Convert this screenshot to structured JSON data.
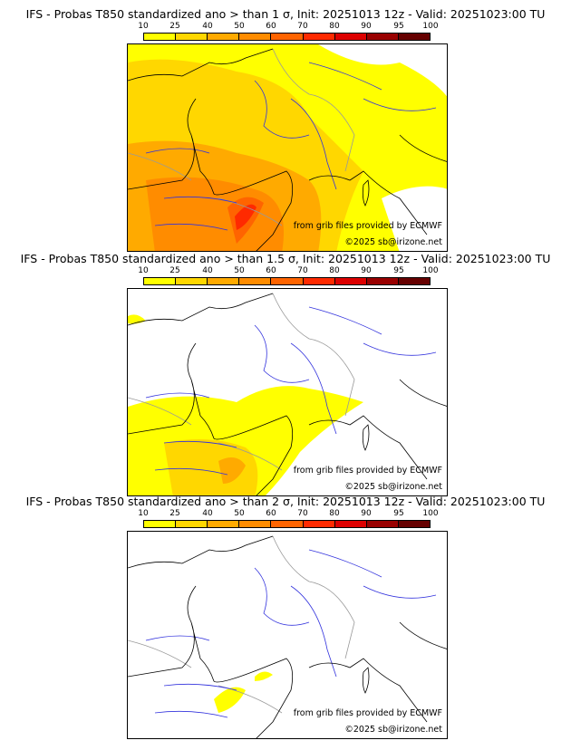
{
  "colorbar": {
    "ticks": [
      "10",
      "25",
      "40",
      "50",
      "60",
      "70",
      "80",
      "90",
      "95",
      "100"
    ],
    "colors": [
      "#ffff00",
      "#ffd700",
      "#ffaa00",
      "#ff8c00",
      "#ff6400",
      "#ff2a00",
      "#dd0000",
      "#990000",
      "#660000"
    ]
  },
  "panels": [
    {
      "title": "IFS - Probas T850  standardized ano > than 1 σ, Init: 20251013 12z - Valid: 20251023:00 TU",
      "level": 3
    },
    {
      "title": "IFS - Probas T850  standardized ano > than 1.5 σ, Init: 20251013 12z - Valid: 20251023:00 TU",
      "level": 2
    },
    {
      "title": "IFS - Probas T850  standardized ano > than 2 σ, Init: 20251013 12z - Valid: 20251023:00 TU",
      "level": 1
    }
  ],
  "credits": {
    "source": "from grib files provided by ECMWF",
    "copyright": "©2025 sb@irizone.net"
  }
}
